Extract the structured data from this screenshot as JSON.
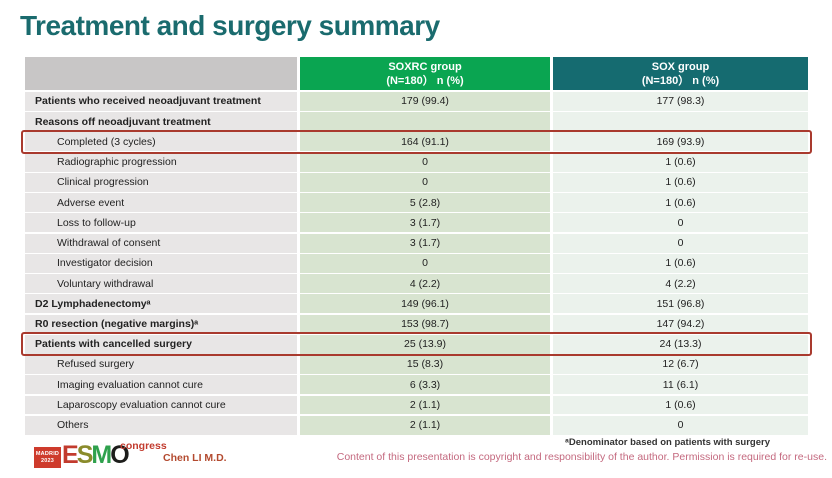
{
  "slide": {
    "title": "Treatment and surgery summary",
    "footnote": "ᵃDenominator based on patients with surgery",
    "copyright": "Content of this presentation is copyright and responsibility of the author. Permission is required for re-use.",
    "author": "Chen LI M.D.",
    "logo": {
      "venue_line1": "MADRID",
      "venue_line2": "2023",
      "letters": [
        "E",
        "S",
        "M",
        "O"
      ],
      "suffix": "congress"
    }
  },
  "colors": {
    "title_teal": "#1A6B6E",
    "header_green": "#0AA551",
    "header_teal": "#156B70",
    "label_col_gray": "#E8E6E6",
    "soxrc_col_green": "#D8E4D0",
    "sox_col_pale": "#EBF2EC",
    "highlight_red": "#A93A2E",
    "copyright_pink": "#C4697F",
    "author_red": "#B34A2F"
  },
  "table": {
    "header": {
      "group1": {
        "name": "SOXRC group",
        "sub": "(N=180） n (%)"
      },
      "group2": {
        "name": "SOX group",
        "sub": "(N=180） n (%)"
      }
    },
    "rows": [
      {
        "label": "Patients who received neoadjuvant treatment",
        "soxrc": "179 (99.4)",
        "sox": "177 (98.3)",
        "bold": true,
        "indent": false,
        "highlight": false
      },
      {
        "label": "Reasons off neoadjuvant treatment",
        "soxrc": "",
        "sox": "",
        "bold": true,
        "indent": false,
        "highlight": false
      },
      {
        "label": "Completed (3 cycles)",
        "soxrc": "164 (91.1)",
        "sox": "169 (93.9)",
        "bold": false,
        "indent": true,
        "highlight": true
      },
      {
        "label": "Radiographic progression",
        "soxrc": "0",
        "sox": "1 (0.6)",
        "bold": false,
        "indent": true,
        "highlight": false
      },
      {
        "label": "Clinical progression",
        "soxrc": "0",
        "sox": "1 (0.6)",
        "bold": false,
        "indent": true,
        "highlight": false
      },
      {
        "label": "Adverse event",
        "soxrc": "5 (2.8)",
        "sox": "1 (0.6)",
        "bold": false,
        "indent": true,
        "highlight": false
      },
      {
        "label": "Loss to follow-up",
        "soxrc": "3 (1.7)",
        "sox": "0",
        "bold": false,
        "indent": true,
        "highlight": false
      },
      {
        "label": "Withdrawal of consent",
        "soxrc": "3 (1.7)",
        "sox": "0",
        "bold": false,
        "indent": true,
        "highlight": false
      },
      {
        "label": "Investigator decision",
        "soxrc": "0",
        "sox": "1 (0.6)",
        "bold": false,
        "indent": true,
        "highlight": false
      },
      {
        "label": "Voluntary withdrawal",
        "soxrc": "4 (2.2)",
        "sox": "4 (2.2)",
        "bold": false,
        "indent": true,
        "highlight": false
      },
      {
        "label": "D2 Lymphadenectomyᵃ",
        "soxrc": "149 (96.1)",
        "sox": "151 (96.8)",
        "bold": true,
        "indent": false,
        "highlight": false
      },
      {
        "label": "R0 resection (negative margins)ᵃ",
        "soxrc": "153 (98.7)",
        "sox": "147 (94.2)",
        "bold": true,
        "indent": false,
        "highlight": false
      },
      {
        "label": "Patients with cancelled surgery",
        "soxrc": "25 (13.9)",
        "sox": "24 (13.3)",
        "bold": true,
        "indent": false,
        "highlight": true
      },
      {
        "label": "Refused surgery",
        "soxrc": "15 (8.3)",
        "sox": "12 (6.7)",
        "bold": false,
        "indent": true,
        "highlight": false
      },
      {
        "label": "Imaging evaluation cannot cure",
        "soxrc": "6 (3.3)",
        "sox": "11 (6.1)",
        "bold": false,
        "indent": true,
        "highlight": false
      },
      {
        "label": "Laparoscopy evaluation cannot cure",
        "soxrc": "2 (1.1)",
        "sox": "1 (0.6)",
        "bold": false,
        "indent": true,
        "highlight": false
      },
      {
        "label": "Others",
        "soxrc": "2 (1.1)",
        "sox": "0",
        "bold": false,
        "indent": true,
        "highlight": false
      }
    ]
  }
}
